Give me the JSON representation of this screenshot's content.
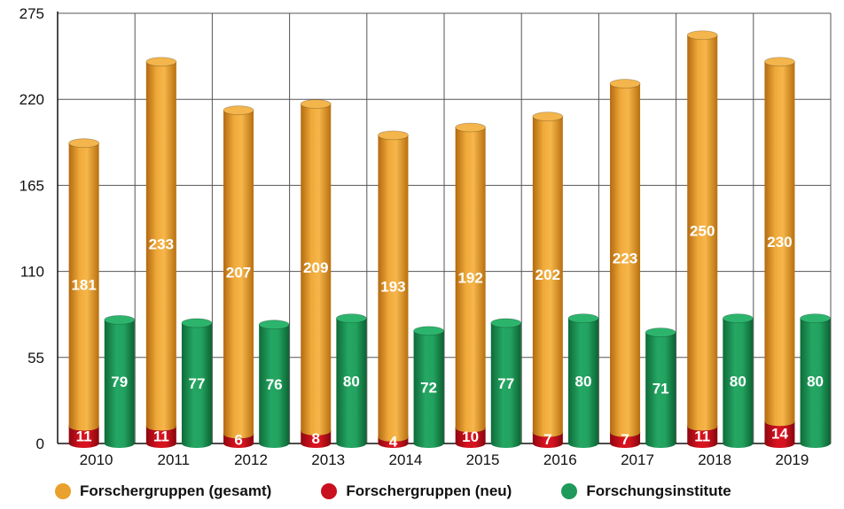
{
  "chart_data": {
    "type": "bar",
    "categories": [
      "2010",
      "2011",
      "2012",
      "2013",
      "2014",
      "2015",
      "2016",
      "2017",
      "2018",
      "2019"
    ],
    "series": [
      {
        "name": "Forschergruppen (gesamt)",
        "values": [
          181,
          233,
          207,
          209,
          193,
          192,
          202,
          223,
          250,
          230
        ],
        "color": "#E9A02C"
      },
      {
        "name": "Forschergruppen (neu)",
        "values": [
          11,
          11,
          6,
          8,
          4,
          10,
          7,
          7,
          11,
          14
        ],
        "color": "#C8101E"
      },
      {
        "name": "Forschungsinstitute",
        "values": [
          79,
          77,
          76,
          80,
          72,
          77,
          80,
          71,
          80,
          80
        ],
        "color": "#1F9A5A"
      }
    ],
    "stacked_note": "Forschergruppen (gesamt) is stacked on top of Forschergruppen (neu)",
    "yticks": [
      "0",
      "55",
      "110",
      "165",
      "220",
      "275"
    ],
    "ylim": [
      0,
      275
    ],
    "grid": true,
    "legend_position": "bottom"
  }
}
